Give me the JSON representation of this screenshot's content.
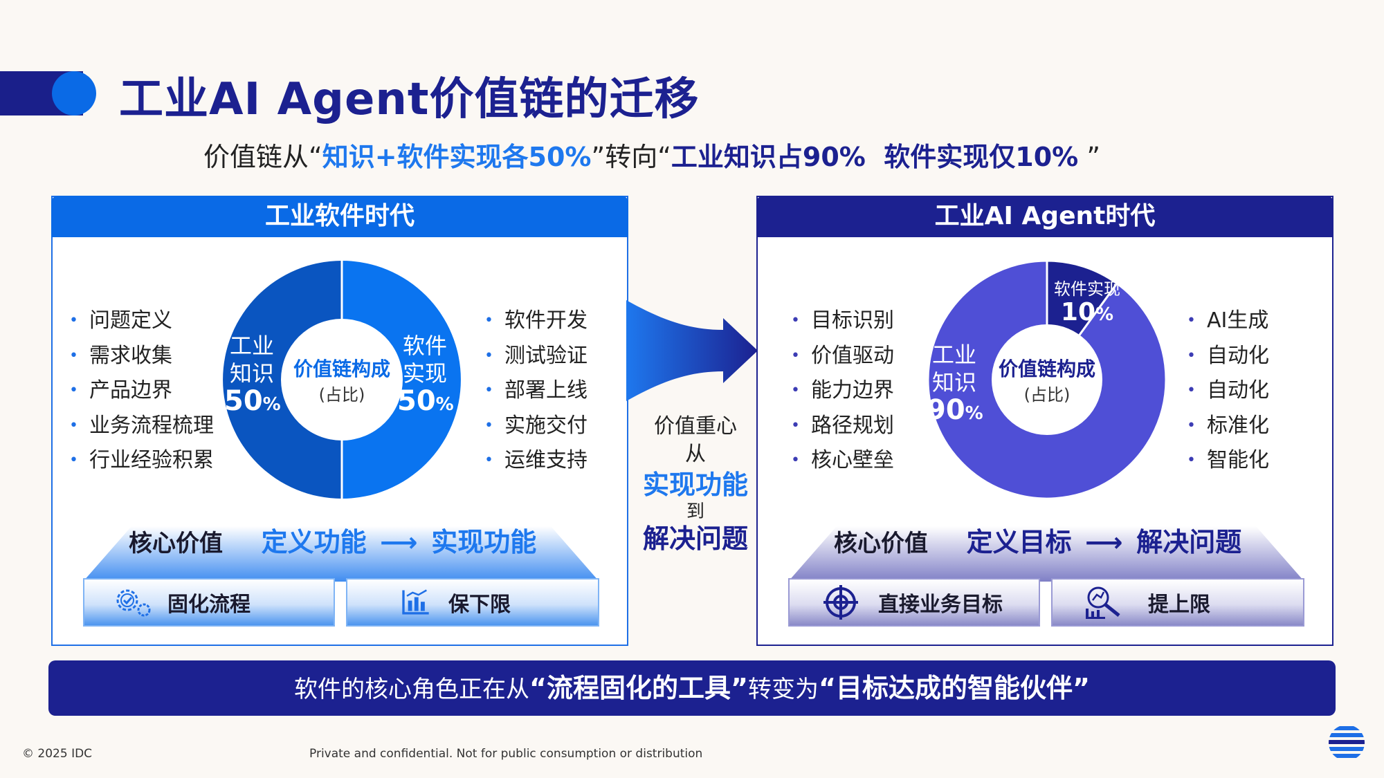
{
  "title": "工业AI Agent价值链的迁移",
  "subtitle": {
    "prefix": "价值链从",
    "q1_open": "“",
    "from": "知识+软件实现各50%",
    "q1_close": "”",
    "mid": "转向",
    "q2_open": "“",
    "to": "工业知识占90%  软件实现仅10%",
    "q2_close": " ”"
  },
  "left_panel": {
    "header": "工业软件时代",
    "left_bullets": [
      "问题定义",
      "需求收集",
      "产品边界",
      "业务流程梳理",
      "行业经验积累"
    ],
    "right_bullets": [
      "软件开发",
      "测试验证",
      "部署上线",
      "实施交付",
      "运维支持"
    ],
    "donut": {
      "center_title": "价值链构成",
      "center_sub": "(占比)",
      "segments": [
        {
          "label_line1": "工业",
          "label_line2": "知识",
          "value": 50,
          "pct_text": "50",
          "pct_unit": "%",
          "color": "#0a55c0"
        },
        {
          "label_line1": "软件",
          "label_line2": "实现",
          "value": 50,
          "pct_text": "50",
          "pct_unit": "%",
          "color": "#0a74f0"
        }
      ]
    },
    "core_label": "核心价值",
    "core_from": "定义功能",
    "core_to": "实现功能",
    "box1": "固化流程",
    "box2": "保下限",
    "box1_icon": "gears-check-icon",
    "box2_icon": "bar-chart-icon"
  },
  "middle": {
    "line1": "价值重心",
    "line2": "从",
    "line3": "实现功能",
    "line4": "到",
    "line5": "解决问题"
  },
  "right_panel": {
    "header": "工业AI Agent时代",
    "left_bullets": [
      "目标识别",
      "价值驱动",
      "能力边界",
      "路径规划",
      "核心壁垒"
    ],
    "right_bullets": [
      "AI生成",
      "自动化",
      "自动化",
      "标准化",
      "智能化"
    ],
    "donut": {
      "center_title": "价值链构成",
      "center_sub": "(占比)",
      "segments": [
        {
          "label_line1": "软件实现",
          "label_line2": "",
          "value": 10,
          "pct_text": "10",
          "pct_unit": "%",
          "color": "#1c2190"
        },
        {
          "label_line1": "工业",
          "label_line2": "知识",
          "value": 90,
          "pct_text": "90",
          "pct_unit": "%",
          "color": "#4f4fd6"
        }
      ]
    },
    "core_label": "核心价值",
    "core_from": "定义目标",
    "core_to": "解决问题",
    "box1": "直接业务目标",
    "box2": "提上限",
    "box1_icon": "target-icon",
    "box2_icon": "chart-magnifier-icon"
  },
  "bottom": {
    "prefix": "软件的核心角色正在从",
    "from": "“流程固化的工具”",
    "mid": "转变为",
    "to": "“目标达成的智能伙伴”"
  },
  "footer": {
    "copyright": "© 2025 IDC",
    "confidential": "Private and confidential. Not for public consumption or distribution",
    "logo_icon": "idc-globe-icon"
  },
  "colors": {
    "navy": "#1c2190",
    "blue": "#0a6ae6",
    "light_blue_text": "#1e78ee",
    "purple": "#4f4fd6"
  }
}
